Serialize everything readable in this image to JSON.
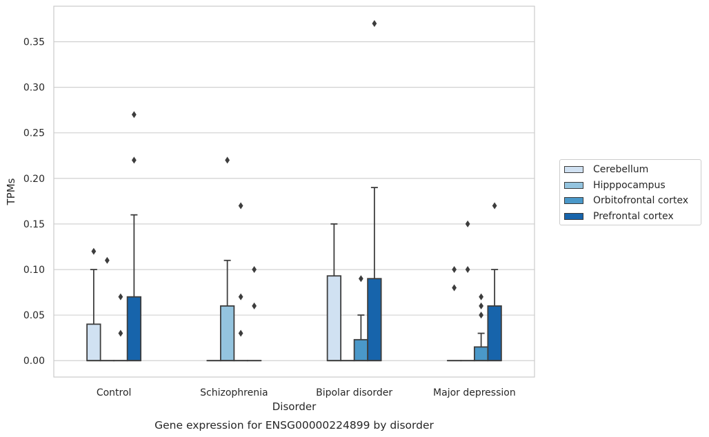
{
  "chart_data": {
    "type": "box",
    "title": "Gene expression for ENSG00000224899 by disorder",
    "xlabel": "Disorder",
    "ylabel": "TPMs",
    "ylim": [
      -0.018,
      0.389
    ],
    "yticks": [
      "0.00",
      "0.05",
      "0.10",
      "0.15",
      "0.20",
      "0.25",
      "0.30",
      "0.35"
    ],
    "grid": true,
    "legend_position": "right",
    "categories": [
      "Control",
      "Schizophrenia",
      "Bipolar disorder",
      "Major depression"
    ],
    "series": [
      {
        "name": "Cerebellum",
        "color": "#d0e1f2",
        "boxes": [
          {
            "q1": 0.0,
            "median": 0.0,
            "q3": 0.04,
            "whisker_low": 0.0,
            "whisker_high": 0.1,
            "outliers": [
              0.12
            ]
          },
          {
            "q1": 0.0,
            "median": 0.0,
            "q3": 0.0,
            "whisker_low": 0.0,
            "whisker_high": 0.0,
            "outliers": []
          },
          {
            "q1": 0.0,
            "median": 0.0,
            "q3": 0.093,
            "whisker_low": 0.0,
            "whisker_high": 0.15,
            "outliers": []
          },
          {
            "q1": 0.0,
            "median": 0.0,
            "q3": 0.0,
            "whisker_low": 0.0,
            "whisker_high": 0.0,
            "outliers": [
              0.08,
              0.1
            ]
          }
        ]
      },
      {
        "name": "Hipppocampus",
        "color": "#94c4df",
        "boxes": [
          {
            "q1": 0.0,
            "median": 0.0,
            "q3": 0.0,
            "whisker_low": 0.0,
            "whisker_high": 0.0,
            "outliers": [
              0.11
            ]
          },
          {
            "q1": 0.0,
            "median": 0.0,
            "q3": 0.06,
            "whisker_low": 0.0,
            "whisker_high": 0.11,
            "outliers": [
              0.22
            ]
          },
          {
            "q1": 0.0,
            "median": 0.0,
            "q3": 0.0,
            "whisker_low": 0.0,
            "whisker_high": 0.0,
            "outliers": []
          },
          {
            "q1": 0.0,
            "median": 0.0,
            "q3": 0.0,
            "whisker_low": 0.0,
            "whisker_high": 0.0,
            "outliers": [
              0.1,
              0.15
            ]
          }
        ]
      },
      {
        "name": "Orbitofrontal cortex",
        "color": "#4a98c9",
        "boxes": [
          {
            "q1": 0.0,
            "median": 0.0,
            "q3": 0.0,
            "whisker_low": 0.0,
            "whisker_high": 0.0,
            "outliers": [
              0.03,
              0.07
            ]
          },
          {
            "q1": 0.0,
            "median": 0.0,
            "q3": 0.0,
            "whisker_low": 0.0,
            "whisker_high": 0.0,
            "outliers": [
              0.03,
              0.07,
              0.17
            ]
          },
          {
            "q1": 0.0,
            "median": 0.0,
            "q3": 0.023,
            "whisker_low": 0.0,
            "whisker_high": 0.05,
            "outliers": [
              0.09
            ]
          },
          {
            "q1": 0.0,
            "median": 0.0,
            "q3": 0.015,
            "whisker_low": 0.0,
            "whisker_high": 0.03,
            "outliers": [
              0.05,
              0.06,
              0.07
            ]
          }
        ]
      },
      {
        "name": "Prefrontal cortex",
        "color": "#1764ab",
        "boxes": [
          {
            "q1": 0.0,
            "median": 0.0,
            "q3": 0.07,
            "whisker_low": 0.0,
            "whisker_high": 0.16,
            "outliers": [
              0.22,
              0.27
            ]
          },
          {
            "q1": 0.0,
            "median": 0.0,
            "q3": 0.0,
            "whisker_low": 0.0,
            "whisker_high": 0.0,
            "outliers": [
              0.06,
              0.1
            ]
          },
          {
            "q1": 0.0,
            "median": 0.0,
            "q3": 0.09,
            "whisker_low": 0.0,
            "whisker_high": 0.19,
            "outliers": [
              0.37
            ]
          },
          {
            "q1": 0.0,
            "median": 0.0,
            "q3": 0.06,
            "whisker_low": 0.0,
            "whisker_high": 0.1,
            "outliers": [
              0.17
            ]
          }
        ]
      }
    ]
  }
}
